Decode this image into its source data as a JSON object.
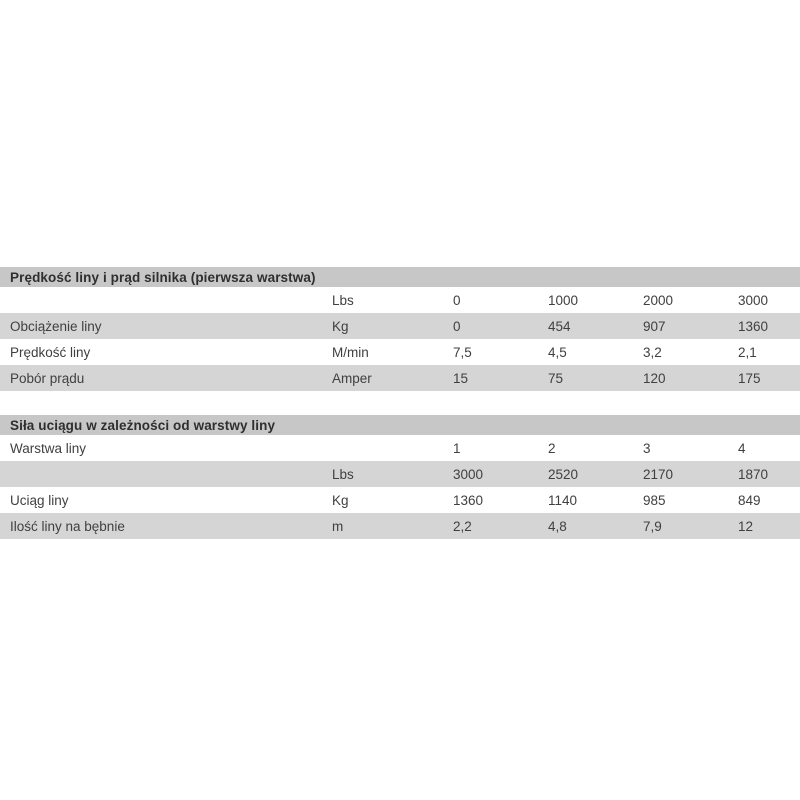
{
  "page": {
    "background": "#ffffff"
  },
  "colors": {
    "title_bar_bg": "#c7c7c7",
    "shaded_row_bg": "#d5d5d5",
    "plain_row_bg": "#ffffff",
    "title_text": "#2f2f2f",
    "row_text": "#404040"
  },
  "tables": [
    {
      "title": "Prędkość liny i prąd silnika (pierwsza warstwa)",
      "rows": [
        {
          "cells": [
            "",
            "Lbs",
            "0",
            "1000",
            "2000",
            "3000"
          ]
        },
        {
          "cells": [
            "Obciążenie liny",
            "Kg",
            "0",
            "454",
            "907",
            "1360"
          ]
        },
        {
          "cells": [
            "Prędkość liny",
            "M/min",
            "7,5",
            "4,5",
            "3,2",
            "2,1"
          ]
        },
        {
          "cells": [
            "Pobór prądu",
            "Amper",
            "15",
            "75",
            "120",
            "175"
          ]
        }
      ]
    },
    {
      "title": "Siła uciągu w zależności od warstwy liny",
      "rows": [
        {
          "cells": [
            "Warstwa liny",
            "",
            "1",
            "2",
            "3",
            "4"
          ]
        },
        {
          "cells": [
            "",
            "Lbs",
            "3000",
            "2520",
            "2170",
            "1870"
          ]
        },
        {
          "cells": [
            "Uciąg liny",
            "Kg",
            "1360",
            "1140",
            "985",
            "849"
          ]
        },
        {
          "cells": [
            "Ilość liny na bębnie",
            "m",
            "2,2",
            "4,8",
            "7,9",
            "12"
          ]
        }
      ]
    }
  ]
}
